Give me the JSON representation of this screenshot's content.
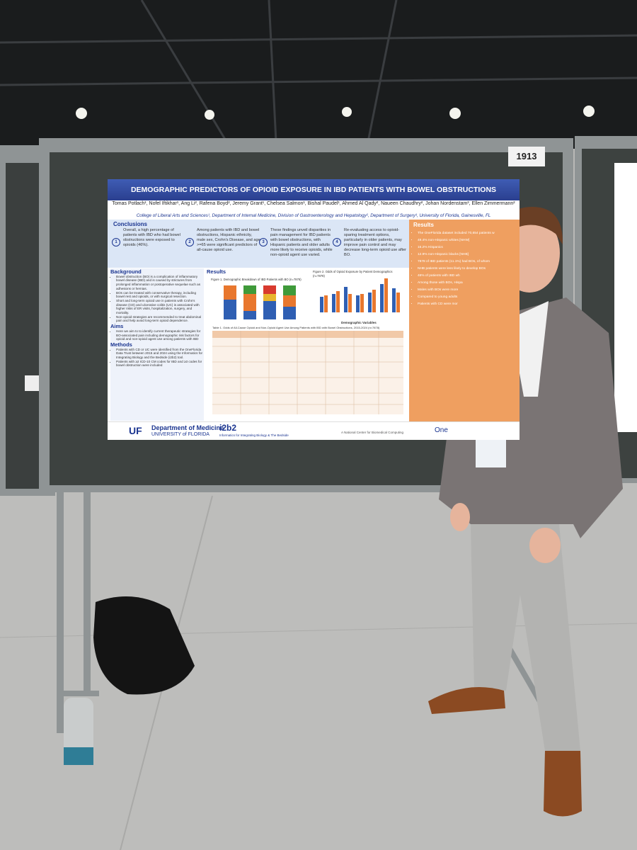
{
  "booth_number": "1913",
  "poster": {
    "title": "DEMOGRAPHIC PREDICTORS OF OPIOID EXPOSURE IN IBD PATIENTS WITH BOWEL OBSTRUCTIONS",
    "authors": "Tomas Potlach¹, Nofel Iftikhar¹, Ang Li², Rafena Boyd², Jeremy Grant¹, Chelsea Salmon¹, Bishal Paudel¹, Ahmed Al Qady², Naueen Chaudhry², Johan Nordenstam³, Ellen Zimmermann²",
    "affiliations": "College of Liberal Arts and Sciences¹, Department of Internal Medicine, Division of Gastroenterology and Hepatology², Department of Surgery³, University of Florida, Gainesville, FL",
    "conclusions": {
      "heading": "Conclusions",
      "items": [
        {
          "number": "1",
          "text": "Overall, a high percentage of patients with IBD who had bowel obstructions were exposed to opioids (46%)."
        },
        {
          "number": "2",
          "text": "Among patients with IBD and bowel obstructions, Hispanic ethnicity, male sex, Crohn's Disease, and age >=65 were significant predictors of all-cause opioid use."
        },
        {
          "number": "3",
          "text": "These findings unveil disparities in pain management for IBD patients with bowel obstructions, with Hispanic patients and older adults more likely to receive opioids, while non-opioid agent use varied."
        },
        {
          "number": "4",
          "text": "Re-evaluating access to opioid-sparing treatment options, particularly in older patients, may improve pain control and may decrease long-term opioid use after BO."
        }
      ]
    },
    "background": {
      "heading": "Background",
      "bullets": [
        "Bowel obstruction (BO) is a complication of inflammatory bowel disease (IBD) and is caused by strictures from prolonged inflammation or postoperative sequelae such as adhesions or hernias.",
        "BOs can be treated with conservative therapy, including bowel rest and opioids, or with surgical resection.",
        "Short and long-term opioid use in patients with Crohn's disease (CD) and ulcerative colitis (UC) is associated with higher risks of ER visits, hospitalization, surgery, and mortality.",
        "Non-opioid strategies are recommended to treat abdominal pain and help avoid long-term opioid dependence."
      ]
    },
    "aims": {
      "heading": "Aims",
      "bullets": [
        "Here we aim to to identify current therapeutic strategies for BO-associated pain including demographic risk factors for opioid and non-opioid agent use among patients with IBD"
      ]
    },
    "methods": {
      "heading": "Methods",
      "bullets": [
        "Patients with CD or UC were identified from the OneFlorida Data Trust between 2015 and 2024 using the Informatics for Integrating Biology and the Bedside (i2b2) tool.",
        "Patients with ≥2 ICD-10 CM codes for IBD and ≥3 codes for bowel obstruction were included"
      ]
    },
    "results_heading": "Results",
    "figure1_title": "Figure 1. Demographic Breakdown of IBD Patients with BO (n=7878)",
    "figure2_title": "Figure 2. Odds of Opioid Exposure by Patient Demographics (n=7878)",
    "figure2_xlabel": "Demographic Variables",
    "table_title": "Table 1. Odds of All-Cause Opioid and Non-Opioid Agent Use Among Patients with IBD with Bowel Obstructions, 2015-2024 (n=7878)",
    "results_right": {
      "heading": "Results",
      "items": [
        "The OneFlorida dataset included 70,654 patients w",
        "49.4% non-Hispanic whites [NHW]",
        "16.2% Hispanics",
        "12.9% non-Hispanic blacks [NHB]",
        "7878 of IBD patients (11.1%) had BOs, of whom",
        "NHB patients were less likely to develop BOs",
        "46% of patients with IBD wh",
        "Among those with BOs, Hispa",
        "Males with BOs were more",
        "Compared to young adults",
        "Patients with CD were mor"
      ]
    },
    "footer": {
      "uf_logo": "UF",
      "uf_department": "Department of Medicine",
      "uf_university": "UNIVERSITY of FLORIDA",
      "i2b2": "i2b2",
      "i2b2_sub": "Informatics for Integrating Biology & The Bedside",
      "tagline": "A National Center for Biomedical Computing",
      "onefl": "One"
    }
  }
}
